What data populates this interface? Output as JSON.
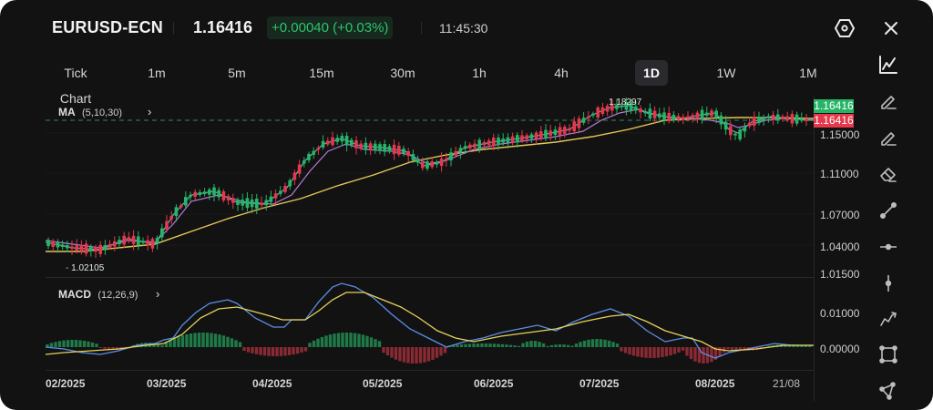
{
  "header": {
    "symbol": "EURUSD-ECN",
    "price": "1.16416",
    "change": "+0.00040 (+0.03%)",
    "time": "11:45:30",
    "settings_icon": "hexagon-settings-icon",
    "close_icon": "close-icon"
  },
  "timeframes": [
    {
      "label": "Tick Chart",
      "active": false
    },
    {
      "label": "1m",
      "active": false
    },
    {
      "label": "5m",
      "active": false
    },
    {
      "label": "15m",
      "active": false
    },
    {
      "label": "30m",
      "active": false
    },
    {
      "label": "1h",
      "active": false
    },
    {
      "label": "4h",
      "active": false
    },
    {
      "label": "1D",
      "active": true
    },
    {
      "label": "1W",
      "active": false
    },
    {
      "label": "1M",
      "active": false
    }
  ],
  "indicators": {
    "ma": {
      "name": "MA",
      "params": "(5,10,30)"
    },
    "macd": {
      "name": "MACD",
      "params": "(12,26,9)"
    }
  },
  "price_axis": {
    "bid_badge": "1.16416",
    "ask_badge": "1.16416",
    "labels": [
      "1.15000",
      "1.11000",
      "1.07000",
      "1.04000",
      "1.01500"
    ]
  },
  "macd_axis": {
    "labels": [
      "0.01000",
      "0.00000"
    ]
  },
  "annotations": {
    "high": "1.18297",
    "low": "1.02105"
  },
  "x_axis": {
    "labels": [
      "02/2025",
      "03/2025",
      "04/2025",
      "05/2025",
      "06/2025",
      "07/2025",
      "08/2025",
      "21/08"
    ]
  },
  "toolbar": [
    "chart-type-icon",
    "pencil-icon",
    "pencil-line-icon",
    "eraser-icon",
    "trend-line-icon",
    "horizontal-line-icon",
    "vertical-line-icon",
    "polyline-icon",
    "rectangle-icon",
    "triangle-icon"
  ],
  "colors": {
    "background": "#121212",
    "up": "#26b566",
    "down": "#e5384b",
    "ma5": "#5fb3c4",
    "ma10": "#b57bd6",
    "ma30": "#e5c75a",
    "macd_line": "#5b8ee6",
    "signal_line": "#e5d25a",
    "hist_up": "#1f7a48",
    "hist_down": "#8a2a32",
    "bid_badge": "#26b566",
    "ask_badge": "#e5384b"
  },
  "chart_data": {
    "type": "candlestick",
    "title": "EURUSD-ECN 1D",
    "indicators": [
      "MA(5,10,30)",
      "MACD(12,26,9)"
    ],
    "x_ticks": [
      "02/2025",
      "03/2025",
      "04/2025",
      "05/2025",
      "06/2025",
      "07/2025",
      "08/2025",
      "21/08"
    ],
    "y_ticks": [
      1.015,
      1.04,
      1.07,
      1.11,
      1.15
    ],
    "current_price": 1.16416,
    "high_marker": 1.18297,
    "low_marker": 1.02105,
    "macd_y_ticks": [
      0.0,
      0.01
    ]
  }
}
